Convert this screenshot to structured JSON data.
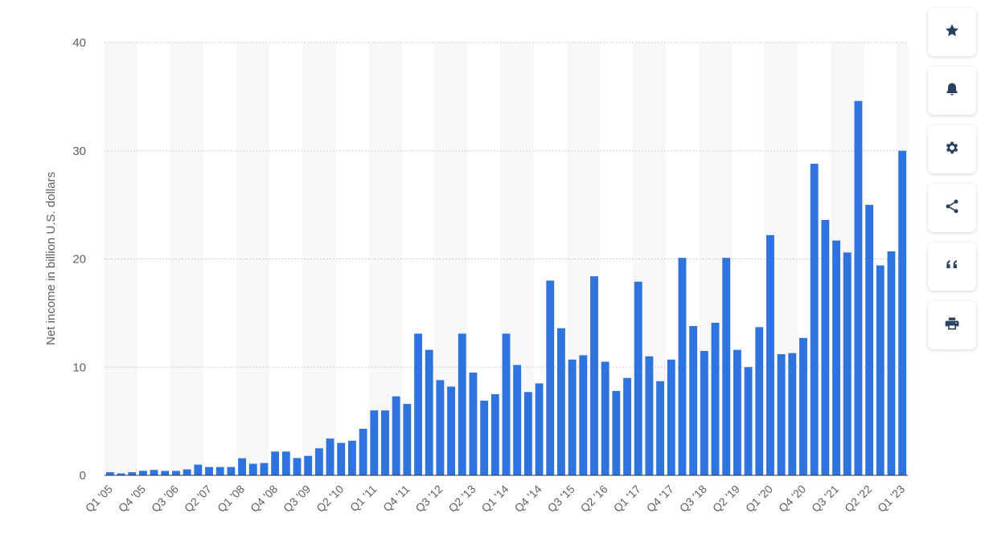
{
  "chart_data": {
    "type": "bar",
    "ylabel": "Net income in billion U.S. dollars",
    "ylim": [
      0,
      40
    ],
    "yticks": [
      0,
      10,
      20,
      30,
      40
    ],
    "grid": true,
    "bar_color": "#2f73de",
    "band_color": "#f7f7f7",
    "categories": [
      "Q1 '05",
      "Q2 '05",
      "Q3 '05",
      "Q4 '05",
      "Q1 '06",
      "Q2 '06",
      "Q3 '06",
      "Q4 '06",
      "Q1 '07",
      "Q2 '07",
      "Q3 '07",
      "Q4 '07",
      "Q1 '08",
      "Q2 '08",
      "Q3 '08",
      "Q4 '08",
      "Q1 '09",
      "Q2 '09",
      "Q3 '09",
      "Q4 '09",
      "Q1 '10",
      "Q2 '10",
      "Q3 '10",
      "Q4 '10",
      "Q1 '11",
      "Q2 '11",
      "Q3 '11",
      "Q4 '11",
      "Q1 '12",
      "Q2 '12",
      "Q3 '12",
      "Q4 '12",
      "Q1 '13",
      "Q2 '13",
      "Q3 '13",
      "Q4 '13",
      "Q1 '14",
      "Q2 '14",
      "Q3 '14",
      "Q4 '14",
      "Q1 '15",
      "Q2 '15",
      "Q3 '15",
      "Q4 '15",
      "Q1 '16",
      "Q2 '16",
      "Q3 '16",
      "Q4 '16",
      "Q1 '17",
      "Q2 '17",
      "Q3 '17",
      "Q4 '17",
      "Q1 '18",
      "Q2 '18",
      "Q3 '18",
      "Q4 '18",
      "Q1 '19",
      "Q2 '19",
      "Q3 '19",
      "Q4 '19",
      "Q1 '20",
      "Q2 '20",
      "Q3 '20",
      "Q4 '20",
      "Q1 '21",
      "Q2 '21",
      "Q3 '21",
      "Q4 '21",
      "Q1 '22",
      "Q2 '22",
      "Q3 '22",
      "Q4 '22",
      "Q1 '23"
    ],
    "visible_tick_labels": [
      "Q1 '05",
      "Q4 '05",
      "Q3 '06",
      "Q2 '07",
      "Q1 '08",
      "Q4 '08",
      "Q3 '09",
      "Q2 '10",
      "Q1 '11",
      "Q4 '11",
      "Q3 '12",
      "Q2 '13",
      "Q1 '14",
      "Q4 '14",
      "Q3 '15",
      "Q2 '16",
      "Q1 '17",
      "Q4 '17",
      "Q3 '18",
      "Q2 '19",
      "Q1 '20",
      "Q4 '20",
      "Q3 '21",
      "Q2 '22",
      "Q1 '23"
    ],
    "values": [
      0.29,
      0.18,
      0.29,
      0.42,
      0.5,
      0.41,
      0.41,
      0.55,
      0.99,
      0.77,
      0.77,
      0.77,
      1.58,
      1.07,
      1.14,
      2.2,
      2.2,
      1.6,
      1.8,
      2.5,
      3.4,
      3.0,
      3.2,
      4.3,
      6.0,
      6.0,
      7.3,
      6.6,
      13.1,
      11.6,
      8.8,
      8.2,
      13.1,
      9.5,
      6.9,
      7.5,
      13.1,
      10.2,
      7.7,
      8.5,
      18.0,
      13.6,
      10.7,
      11.1,
      18.4,
      10.5,
      7.8,
      9.0,
      17.9,
      11.0,
      8.7,
      10.7,
      20.1,
      13.8,
      11.5,
      14.1,
      20.1,
      11.6,
      10.0,
      13.7,
      22.2,
      11.2,
      11.3,
      12.7,
      28.8,
      23.6,
      21.7,
      20.6,
      34.6,
      25.0,
      19.4,
      20.7,
      30.0
    ]
  },
  "toolbar": [
    {
      "name": "favorite-button",
      "icon": "star-icon"
    },
    {
      "name": "notification-button",
      "icon": "bell-icon"
    },
    {
      "name": "settings-button",
      "icon": "gear-icon"
    },
    {
      "name": "share-button",
      "icon": "share-icon"
    },
    {
      "name": "cite-button",
      "icon": "quote-icon"
    },
    {
      "name": "print-button",
      "icon": "print-icon"
    }
  ]
}
